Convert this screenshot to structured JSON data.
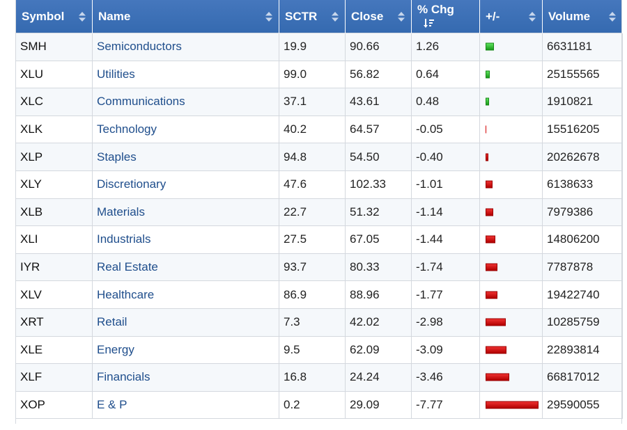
{
  "headers": {
    "symbol": "Symbol",
    "name": "Name",
    "sctr": "SCTR",
    "close": "Close",
    "pct_chg": "% Chg",
    "plus_minus": "+/-",
    "volume": "Volume"
  },
  "sort": {
    "column": "pct_chg",
    "direction": "descending"
  },
  "colors": {
    "header_bg": "#3a6fb5",
    "link": "#1f4e8c",
    "bar_up": "#2db82d",
    "bar_down": "#d40000"
  },
  "rows": [
    {
      "symbol": "SMH",
      "name": "Semiconductors",
      "sctr": "19.9",
      "close": "90.66",
      "pct_chg": "1.26",
      "change": 1.26,
      "volume": "6631181"
    },
    {
      "symbol": "XLU",
      "name": "Utilities",
      "sctr": "99.0",
      "close": "56.82",
      "pct_chg": "0.64",
      "change": 0.64,
      "volume": "25155565"
    },
    {
      "symbol": "XLC",
      "name": "Communications",
      "sctr": "37.1",
      "close": "43.61",
      "pct_chg": "0.48",
      "change": 0.48,
      "volume": "1910821"
    },
    {
      "symbol": "XLK",
      "name": "Technology",
      "sctr": "40.2",
      "close": "64.57",
      "pct_chg": "-0.05",
      "change": -0.05,
      "volume": "15516205"
    },
    {
      "symbol": "XLP",
      "name": "Staples",
      "sctr": "94.8",
      "close": "54.50",
      "pct_chg": "-0.40",
      "change": -0.4,
      "volume": "20262678"
    },
    {
      "symbol": "XLY",
      "name": "Discretionary",
      "sctr": "47.6",
      "close": "102.33",
      "pct_chg": "-1.01",
      "change": -1.01,
      "volume": "6138633"
    },
    {
      "symbol": "XLB",
      "name": "Materials",
      "sctr": "22.7",
      "close": "51.32",
      "pct_chg": "-1.14",
      "change": -1.14,
      "volume": "7979386"
    },
    {
      "symbol": "XLI",
      "name": "Industrials",
      "sctr": "27.5",
      "close": "67.05",
      "pct_chg": "-1.44",
      "change": -1.44,
      "volume": "14806200"
    },
    {
      "symbol": "IYR",
      "name": "Real Estate",
      "sctr": "93.7",
      "close": "80.33",
      "pct_chg": "-1.74",
      "change": -1.74,
      "volume": "7787878"
    },
    {
      "symbol": "XLV",
      "name": "Healthcare",
      "sctr": "86.9",
      "close": "88.96",
      "pct_chg": "-1.77",
      "change": -1.77,
      "volume": "19422740"
    },
    {
      "symbol": "XRT",
      "name": "Retail",
      "sctr": "7.3",
      "close": "42.02",
      "pct_chg": "-2.98",
      "change": -2.98,
      "volume": "10285759"
    },
    {
      "symbol": "XLE",
      "name": "Energy",
      "sctr": "9.5",
      "close": "62.09",
      "pct_chg": "-3.09",
      "change": -3.09,
      "volume": "22893814"
    },
    {
      "symbol": "XLF",
      "name": "Financials",
      "sctr": "16.8",
      "close": "24.24",
      "pct_chg": "-3.46",
      "change": -3.46,
      "volume": "66817012"
    },
    {
      "symbol": "XOP",
      "name": "E & P",
      "sctr": "0.2",
      "close": "29.09",
      "pct_chg": "-7.77",
      "change": -7.77,
      "volume": "29590055"
    }
  ]
}
